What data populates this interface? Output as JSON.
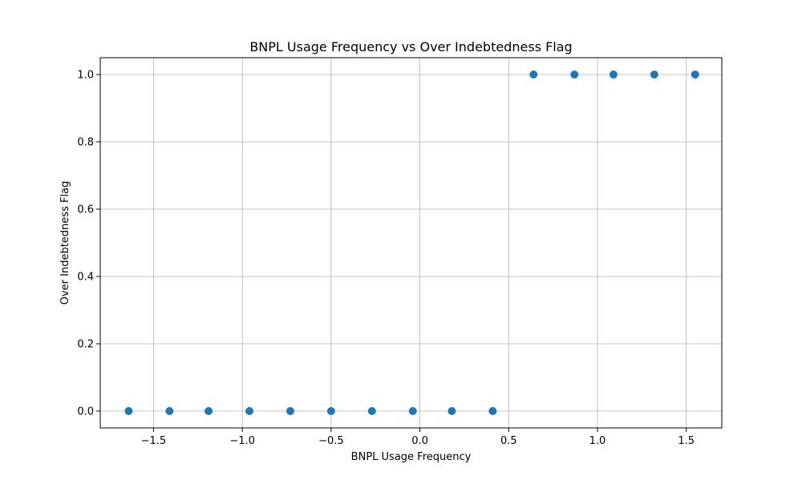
{
  "chart_data": {
    "type": "scatter",
    "title": "BNPL Usage Frequency vs Over Indebtedness Flag",
    "xlabel": "BNPL Usage Frequency",
    "ylabel": "Over Indebtedness Flag",
    "xlim": [
      -1.8,
      1.7
    ],
    "ylim": [
      -0.05,
      1.05
    ],
    "xticks": [
      -1.5,
      -1.0,
      -0.5,
      0.0,
      0.5,
      1.0,
      1.5
    ],
    "xtick_labels": [
      "−1.5",
      "−1.0",
      "−0.5",
      "0.0",
      "0.5",
      "1.0",
      "1.5"
    ],
    "yticks": [
      0.0,
      0.2,
      0.4,
      0.6,
      0.8,
      1.0
    ],
    "ytick_labels": [
      "0.0",
      "0.2",
      "0.4",
      "0.6",
      "0.8",
      "1.0"
    ],
    "grid": true,
    "series": [
      {
        "color": "#1f77b4",
        "points": [
          {
            "x": -1.64,
            "y": 0
          },
          {
            "x": -1.41,
            "y": 0
          },
          {
            "x": -1.19,
            "y": 0
          },
          {
            "x": -0.96,
            "y": 0
          },
          {
            "x": -0.73,
            "y": 0
          },
          {
            "x": -0.5,
            "y": 0
          },
          {
            "x": -0.27,
            "y": 0
          },
          {
            "x": -0.04,
            "y": 0
          },
          {
            "x": 0.18,
            "y": 0
          },
          {
            "x": 0.41,
            "y": 0
          },
          {
            "x": 0.64,
            "y": 1
          },
          {
            "x": 0.87,
            "y": 1
          },
          {
            "x": 1.09,
            "y": 1
          },
          {
            "x": 1.32,
            "y": 1
          },
          {
            "x": 1.55,
            "y": 1
          }
        ]
      }
    ]
  }
}
